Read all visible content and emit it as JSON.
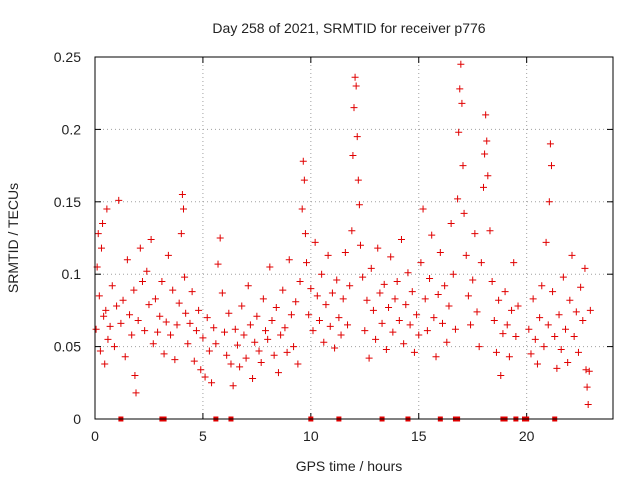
{
  "chart_data": {
    "type": "scatter",
    "title": "Day 258 of 2021, SRMTID for receiver p776",
    "xlabel": "GPS time / hours",
    "ylabel": "SRMTID / TECUs",
    "xlim": [
      0,
      24
    ],
    "ylim": [
      0,
      0.25
    ],
    "xticks": [
      0,
      5,
      10,
      15,
      20
    ],
    "xtick_labels": [
      "0",
      "5",
      "10",
      "15",
      "20"
    ],
    "yticks": [
      0,
      0.05,
      0.1,
      0.15,
      0.2,
      0.25
    ],
    "ytick_labels": [
      "0",
      "0.05",
      "0.1",
      "0.15",
      "0.2",
      "0.25"
    ],
    "grid": true,
    "marker": "plus",
    "color": "#e00000",
    "series": [
      {
        "name": "SRMTID",
        "points": [
          [
            0.05,
            0.062
          ],
          [
            0.1,
            0.105
          ],
          [
            0.15,
            0.128
          ],
          [
            0.2,
            0.085
          ],
          [
            0.25,
            0.047
          ],
          [
            0.3,
            0.118
          ],
          [
            0.35,
            0.135
          ],
          [
            0.4,
            0.071
          ],
          [
            0.45,
            0.038
          ],
          [
            0.5,
            0.075
          ],
          [
            0.55,
            0.145
          ],
          [
            0.6,
            0.055
          ],
          [
            0.7,
            0.064
          ],
          [
            0.8,
            0.092
          ],
          [
            0.9,
            0.05
          ],
          [
            1.0,
            0.078
          ],
          [
            1.1,
            0.151
          ],
          [
            1.2,
            0.066
          ],
          [
            1.3,
            0.082
          ],
          [
            1.4,
            0.043
          ],
          [
            1.5,
            0.11
          ],
          [
            1.6,
            0.072
          ],
          [
            1.7,
            0.058
          ],
          [
            1.8,
            0.089
          ],
          [
            1.85,
            0.03
          ],
          [
            1.9,
            0.018
          ],
          [
            2.0,
            0.068
          ],
          [
            2.1,
            0.118
          ],
          [
            2.2,
            0.095
          ],
          [
            2.3,
            0.061
          ],
          [
            2.4,
            0.102
          ],
          [
            2.5,
            0.079
          ],
          [
            2.6,
            0.124
          ],
          [
            2.7,
            0.052
          ],
          [
            2.8,
            0.083
          ],
          [
            2.9,
            0.06
          ],
          [
            3.0,
            0.071
          ],
          [
            3.1,
            0.095
          ],
          [
            3.2,
            0.045
          ],
          [
            3.3,
            0.067
          ],
          [
            3.4,
            0.113
          ],
          [
            3.5,
            0.058
          ],
          [
            3.6,
            0.089
          ],
          [
            3.7,
            0.041
          ],
          [
            3.8,
            0.065
          ],
          [
            3.9,
            0.08
          ],
          [
            4.0,
            0.128
          ],
          [
            4.05,
            0.155
          ],
          [
            4.1,
            0.145
          ],
          [
            4.15,
            0.098
          ],
          [
            4.2,
            0.073
          ],
          [
            4.3,
            0.052
          ],
          [
            4.4,
            0.066
          ],
          [
            4.5,
            0.088
          ],
          [
            4.6,
            0.04
          ],
          [
            4.7,
            0.061
          ],
          [
            4.8,
            0.075
          ],
          [
            4.9,
            0.034
          ],
          [
            5.0,
            0.056
          ],
          [
            5.1,
            0.029
          ],
          [
            5.2,
            0.07
          ],
          [
            5.3,
            0.047
          ],
          [
            5.4,
            0.025
          ],
          [
            5.5,
            0.063
          ],
          [
            5.6,
            0.052
          ],
          [
            5.7,
            0.107
          ],
          [
            5.8,
            0.125
          ],
          [
            5.9,
            0.087
          ],
          [
            6.0,
            0.06
          ],
          [
            6.1,
            0.044
          ],
          [
            6.2,
            0.073
          ],
          [
            6.3,
            0.038
          ],
          [
            6.4,
            0.023
          ],
          [
            6.5,
            0.062
          ],
          [
            6.6,
            0.051
          ],
          [
            6.7,
            0.036
          ],
          [
            6.8,
            0.078
          ],
          [
            6.9,
            0.058
          ],
          [
            7.0,
            0.042
          ],
          [
            7.1,
            0.092
          ],
          [
            7.2,
            0.065
          ],
          [
            7.3,
            0.028
          ],
          [
            7.4,
            0.053
          ],
          [
            7.5,
            0.071
          ],
          [
            7.6,
            0.047
          ],
          [
            7.7,
            0.039
          ],
          [
            7.8,
            0.083
          ],
          [
            7.9,
            0.061
          ],
          [
            8.0,
            0.055
          ],
          [
            8.1,
            0.105
          ],
          [
            8.2,
            0.068
          ],
          [
            8.3,
            0.044
          ],
          [
            8.4,
            0.077
          ],
          [
            8.5,
            0.032
          ],
          [
            8.6,
            0.058
          ],
          [
            8.7,
            0.089
          ],
          [
            8.8,
            0.063
          ],
          [
            8.9,
            0.046
          ],
          [
            9.0,
            0.11
          ],
          [
            9.1,
            0.072
          ],
          [
            9.2,
            0.05
          ],
          [
            9.3,
            0.081
          ],
          [
            9.4,
            0.038
          ],
          [
            9.5,
            0.095
          ],
          [
            9.6,
            0.145
          ],
          [
            9.65,
            0.178
          ],
          [
            9.7,
            0.165
          ],
          [
            9.75,
            0.128
          ],
          [
            9.8,
            0.108
          ],
          [
            9.9,
            0.072
          ],
          [
            10.0,
            0.09
          ],
          [
            10.1,
            0.061
          ],
          [
            10.2,
            0.122
          ],
          [
            10.3,
            0.085
          ],
          [
            10.4,
            0.068
          ],
          [
            10.5,
            0.1
          ],
          [
            10.6,
            0.053
          ],
          [
            10.7,
            0.079
          ],
          [
            10.8,
            0.113
          ],
          [
            10.9,
            0.064
          ],
          [
            11.0,
            0.087
          ],
          [
            11.1,
            0.049
          ],
          [
            11.2,
            0.096
          ],
          [
            11.3,
            0.07
          ],
          [
            11.4,
            0.058
          ],
          [
            11.5,
            0.083
          ],
          [
            11.6,
            0.115
          ],
          [
            11.7,
            0.065
          ],
          [
            11.8,
            0.092
          ],
          [
            11.9,
            0.13
          ],
          [
            11.95,
            0.182
          ],
          [
            12.0,
            0.215
          ],
          [
            12.05,
            0.236
          ],
          [
            12.1,
            0.23
          ],
          [
            12.15,
            0.195
          ],
          [
            12.2,
            0.165
          ],
          [
            12.25,
            0.148
          ],
          [
            12.3,
            0.12
          ],
          [
            12.4,
            0.098
          ],
          [
            12.5,
            0.061
          ],
          [
            12.6,
            0.082
          ],
          [
            12.7,
            0.042
          ],
          [
            12.8,
            0.104
          ],
          [
            12.9,
            0.075
          ],
          [
            13.0,
            0.055
          ],
          [
            13.1,
            0.118
          ],
          [
            13.2,
            0.087
          ],
          [
            13.3,
            0.066
          ],
          [
            13.4,
            0.093
          ],
          [
            13.5,
            0.048
          ],
          [
            13.6,
            0.077
          ],
          [
            13.7,
            0.112
          ],
          [
            13.8,
            0.06
          ],
          [
            13.9,
            0.083
          ],
          [
            14.0,
            0.095
          ],
          [
            14.1,
            0.068
          ],
          [
            14.2,
            0.124
          ],
          [
            14.3,
            0.052
          ],
          [
            14.4,
            0.079
          ],
          [
            14.5,
            0.101
          ],
          [
            14.6,
            0.065
          ],
          [
            14.7,
            0.088
          ],
          [
            14.8,
            0.046
          ],
          [
            14.9,
            0.072
          ],
          [
            15.0,
            0.058
          ],
          [
            15.1,
            0.108
          ],
          [
            15.2,
            0.145
          ],
          [
            15.3,
            0.083
          ],
          [
            15.4,
            0.061
          ],
          [
            15.5,
            0.097
          ],
          [
            15.6,
            0.127
          ],
          [
            15.7,
            0.07
          ],
          [
            15.8,
            0.043
          ],
          [
            15.9,
            0.086
          ],
          [
            16.0,
            0.115
          ],
          [
            16.1,
            0.066
          ],
          [
            16.2,
            0.092
          ],
          [
            16.3,
            0.053
          ],
          [
            16.4,
            0.078
          ],
          [
            16.5,
            0.135
          ],
          [
            16.6,
            0.1
          ],
          [
            16.7,
            0.062
          ],
          [
            16.8,
            0.152
          ],
          [
            16.85,
            0.198
          ],
          [
            16.9,
            0.228
          ],
          [
            16.95,
            0.245
          ],
          [
            17.0,
            0.218
          ],
          [
            17.05,
            0.175
          ],
          [
            17.1,
            0.142
          ],
          [
            17.2,
            0.113
          ],
          [
            17.3,
            0.085
          ],
          [
            17.4,
            0.065
          ],
          [
            17.5,
            0.096
          ],
          [
            17.6,
            0.128
          ],
          [
            17.7,
            0.074
          ],
          [
            17.8,
            0.05
          ],
          [
            17.9,
            0.108
          ],
          [
            18.0,
            0.16
          ],
          [
            18.05,
            0.183
          ],
          [
            18.1,
            0.21
          ],
          [
            18.15,
            0.192
          ],
          [
            18.2,
            0.168
          ],
          [
            18.3,
            0.13
          ],
          [
            18.4,
            0.095
          ],
          [
            18.5,
            0.068
          ],
          [
            18.6,
            0.046
          ],
          [
            18.7,
            0.082
          ],
          [
            18.8,
            0.03
          ],
          [
            18.9,
            0.059
          ],
          [
            19.0,
            0.088
          ],
          [
            19.1,
            0.065
          ],
          [
            19.2,
            0.043
          ],
          [
            19.3,
            0.075
          ],
          [
            19.4,
            0.108
          ],
          [
            19.5,
            0.057
          ],
          [
            19.6,
            0.078
          ],
          [
            20.1,
            0.062
          ],
          [
            20.2,
            0.045
          ],
          [
            20.3,
            0.083
          ],
          [
            20.4,
            0.055
          ],
          [
            20.5,
            0.038
          ],
          [
            20.6,
            0.07
          ],
          [
            20.7,
            0.092
          ],
          [
            20.8,
            0.05
          ],
          [
            20.9,
            0.122
          ],
          [
            21.0,
            0.065
          ],
          [
            21.05,
            0.15
          ],
          [
            21.1,
            0.19
          ],
          [
            21.15,
            0.175
          ],
          [
            21.2,
            0.088
          ],
          [
            21.3,
            0.057
          ],
          [
            21.4,
            0.035
          ],
          [
            21.5,
            0.072
          ],
          [
            21.6,
            0.048
          ],
          [
            21.7,
            0.098
          ],
          [
            21.8,
            0.062
          ],
          [
            21.9,
            0.039
          ],
          [
            22.0,
            0.082
          ],
          [
            22.1,
            0.113
          ],
          [
            22.2,
            0.057
          ],
          [
            22.3,
            0.074
          ],
          [
            22.4,
            0.046
          ],
          [
            22.5,
            0.091
          ],
          [
            22.6,
            0.068
          ],
          [
            22.7,
            0.104
          ],
          [
            22.75,
            0.034
          ],
          [
            22.8,
            0.022
          ],
          [
            22.85,
            0.01
          ],
          [
            22.9,
            0.033
          ],
          [
            22.95,
            0.075
          ]
        ]
      }
    ],
    "baseline_markers_x": [
      1.2,
      3.1,
      3.2,
      5.6,
      6.3,
      10.0,
      11.3,
      13.3,
      14.5,
      16.0,
      16.7,
      16.8,
      18.9,
      19.0,
      19.5,
      19.9,
      20.0,
      21.3
    ]
  }
}
